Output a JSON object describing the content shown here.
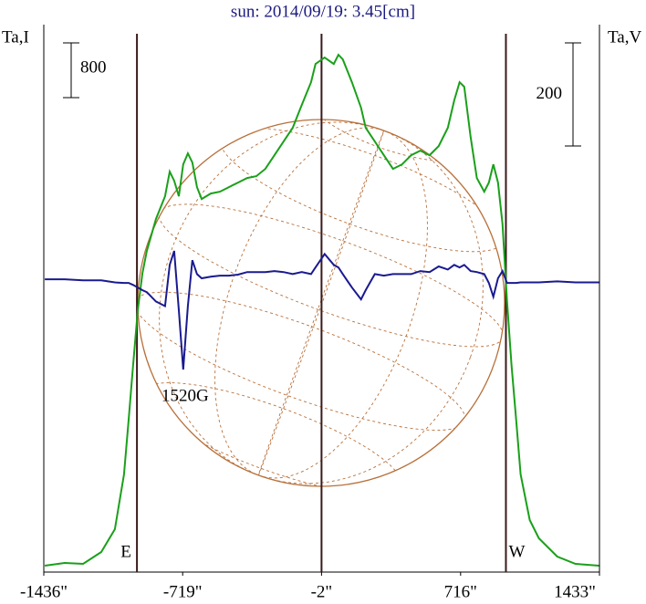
{
  "chart_data": {
    "type": "line",
    "title": "sun: 2014/09/19: 3.45[cm]",
    "y_label": "Ta,I",
    "y2_label": "Ta,V",
    "xlim": [
      -1436,
      1433
    ],
    "xticks": [
      {
        "value": -1436,
        "label": "-1436\""
      },
      {
        "value": -719,
        "label": "-719\""
      },
      {
        "value": -2,
        "label": "-2\""
      },
      {
        "value": 716,
        "label": "716\""
      },
      {
        "value": 1433,
        "label": "1433\""
      }
    ],
    "ylim": [
      0,
      8000
    ],
    "y2lim": [
      -566,
      496
    ],
    "scale_bars": [
      {
        "value": 800,
        "axis": "y"
      },
      {
        "value": 200,
        "axis": "y2"
      }
    ],
    "annotations": [
      {
        "text": "E",
        "x": -955
      },
      {
        "text": "W",
        "x": 950
      },
      {
        "text": "1520G",
        "x": -716
      }
    ],
    "x": [
      -1431,
      -1328,
      -1233,
      -1139,
      -1069,
      -1022,
      -998,
      -975,
      -951,
      -927,
      -904,
      -857,
      -810,
      -786,
      -763,
      -739,
      -716,
      -692,
      -669,
      -645,
      -621,
      -574,
      -527,
      -480,
      -433,
      -386,
      -339,
      -292,
      -245,
      -198,
      -151,
      -104,
      -56,
      -33,
      14,
      61,
      85,
      108,
      155,
      202,
      226,
      273,
      320,
      367,
      414,
      461,
      508,
      556,
      603,
      650,
      683,
      711,
      735,
      768,
      800,
      838,
      862,
      885,
      909,
      932,
      956,
      979,
      1003,
      1026,
      1073,
      1120,
      1215,
      1309,
      1431
    ],
    "series": [
      {
        "name": "I",
        "color": "#1aa01a",
        "values": [
          93,
          133,
          120,
          293,
          627,
          1427,
          2226,
          3026,
          3826,
          4359,
          4692,
          5159,
          5492,
          5852,
          5719,
          5492,
          5959,
          6118,
          5985,
          5625,
          5452,
          5532,
          5559,
          5625,
          5692,
          5759,
          5785,
          5892,
          6092,
          6292,
          6492,
          6825,
          7158,
          7425,
          7518,
          7425,
          7558,
          7492,
          7158,
          6785,
          6492,
          6292,
          6092,
          5892,
          5959,
          6092,
          6159,
          6092,
          6225,
          6492,
          6892,
          7158,
          7092,
          6358,
          5759,
          5559,
          5692,
          5959,
          5692,
          5092,
          3959,
          3026,
          2226,
          1427,
          760,
          493,
          227,
          120,
          93
        ]
      },
      {
        "name": "V",
        "color": "#1a1a90",
        "axis": "y2",
        "values": [
          2,
          2,
          0,
          0,
          -4,
          -5,
          -5,
          -9,
          -14,
          -19,
          -23,
          -41,
          -50,
          30,
          57,
          -58,
          -173,
          -50,
          39,
          12,
          4,
          7,
          9,
          9,
          11,
          16,
          16,
          16,
          18,
          16,
          12,
          16,
          12,
          25,
          51,
          30,
          25,
          12,
          -14,
          -37,
          -19,
          12,
          9,
          12,
          12,
          12,
          18,
          16,
          27,
          21,
          30,
          25,
          30,
          18,
          16,
          12,
          -5,
          -32,
          4,
          18,
          -5,
          -5,
          -5,
          -4,
          -4,
          -4,
          -2,
          -4,
          -4
        ]
      }
    ]
  }
}
